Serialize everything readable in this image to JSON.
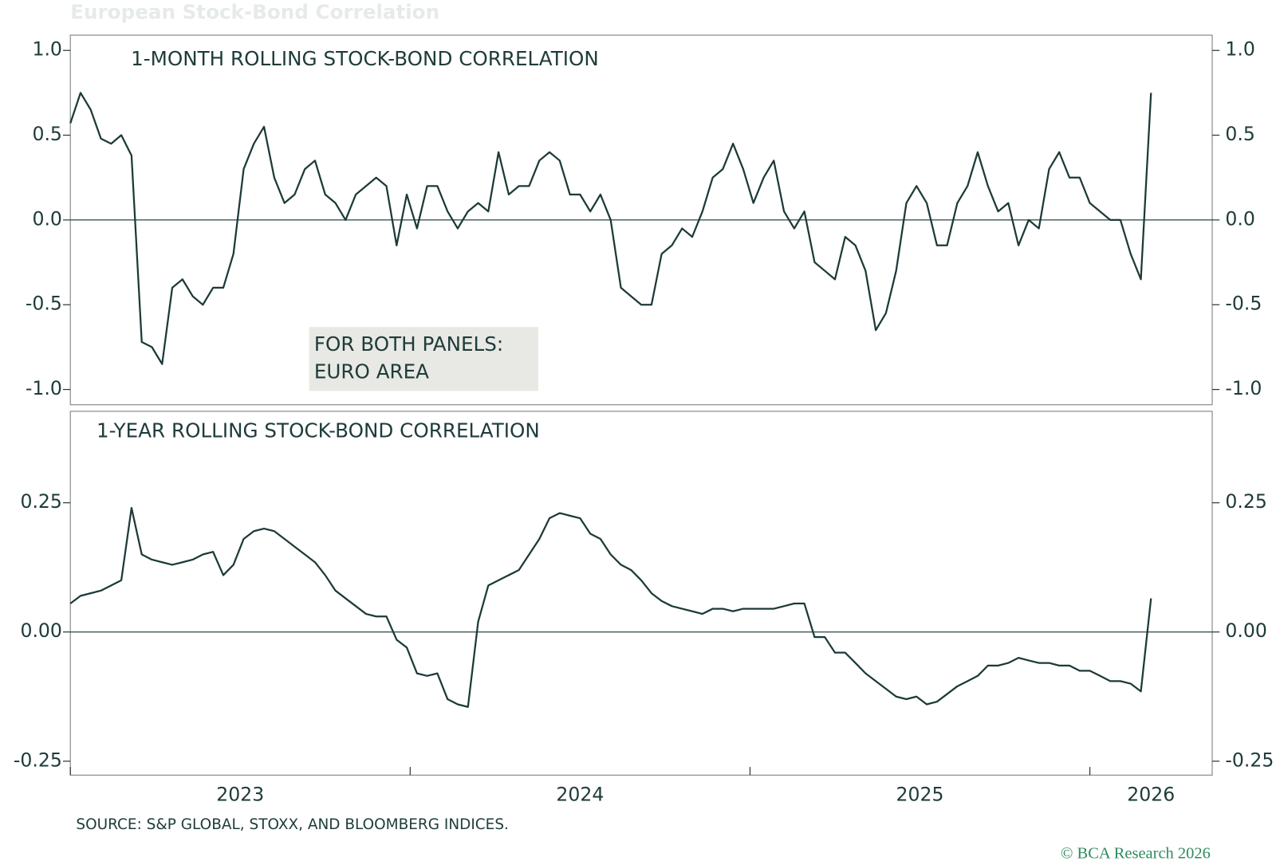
{
  "title": "European Stock-Bond Correlation",
  "source": "SOURCE: S&P GLOBAL, STOXX, AND BLOOMBERG INDICES.",
  "copyright": "© BCA Research 2026",
  "chart_data": [
    {
      "type": "line",
      "title": "1-MONTH ROLLING STOCK-BOND CORRELATION",
      "annotation": [
        "FOR BOTH PANELS:",
        "EURO AREA"
      ],
      "x": [
        2023,
        2023.03,
        2023.06,
        2023.09,
        2023.12,
        2023.15,
        2023.18,
        2023.21,
        2023.24,
        2023.27,
        2023.3,
        2023.33,
        2023.36,
        2023.39,
        2023.42,
        2023.45,
        2023.48,
        2023.51,
        2023.54,
        2023.57,
        2023.6,
        2023.63,
        2023.66,
        2023.69,
        2023.72,
        2023.75,
        2023.78,
        2023.81,
        2023.84,
        2023.87,
        2023.9,
        2023.93,
        2023.96,
        2023.99,
        2024.02,
        2024.05,
        2024.08,
        2024.11,
        2024.14,
        2024.17,
        2024.2,
        2024.23,
        2024.26,
        2024.29,
        2024.32,
        2024.35,
        2024.38,
        2024.41,
        2024.44,
        2024.47,
        2024.5,
        2024.53,
        2024.56,
        2024.59,
        2024.62,
        2024.65,
        2024.68,
        2024.71,
        2024.74,
        2024.77,
        2024.8,
        2024.83,
        2024.86,
        2024.89,
        2024.92,
        2024.95,
        2024.98,
        2025.01,
        2025.04,
        2025.07,
        2025.1,
        2025.13,
        2025.16,
        2025.19,
        2025.22,
        2025.25,
        2025.28,
        2025.31,
        2025.34,
        2025.37,
        2025.4,
        2025.43,
        2025.46,
        2025.49,
        2025.52,
        2025.55,
        2025.58,
        2025.61,
        2025.64,
        2025.67,
        2025.7,
        2025.73,
        2025.76,
        2025.79,
        2025.82,
        2025.85,
        2025.88,
        2025.91,
        2025.94,
        2025.97,
        2026,
        2026.03,
        2026.06,
        2026.09,
        2026.12,
        2026.15,
        2026.18
      ],
      "series": [
        {
          "color": "#1c3a38",
          "values": [
            0.57,
            0.75,
            0.65,
            0.48,
            0.45,
            0.5,
            0.38,
            -0.72,
            -0.75,
            -0.85,
            -0.4,
            -0.35,
            -0.45,
            -0.5,
            -0.4,
            -0.4,
            -0.2,
            0.3,
            0.45,
            0.55,
            0.25,
            0.1,
            0.15,
            0.3,
            0.35,
            0.15,
            0.1,
            0.0,
            0.15,
            0.2,
            0.25,
            0.2,
            -0.15,
            0.15,
            -0.05,
            0.2,
            0.2,
            0.05,
            -0.05,
            0.05,
            0.1,
            0.05,
            0.4,
            0.15,
            0.2,
            0.2,
            0.35,
            0.4,
            0.35,
            0.15,
            0.15,
            0.05,
            0.15,
            0.0,
            -0.4,
            -0.45,
            -0.5,
            -0.5,
            -0.2,
            -0.15,
            -0.05,
            -0.1,
            0.05,
            0.25,
            0.3,
            0.45,
            0.3,
            0.1,
            0.25,
            0.35,
            0.05,
            -0.05,
            0.05,
            -0.25,
            -0.3,
            -0.35,
            -0.1,
            -0.15,
            -0.3,
            -0.65,
            -0.55,
            -0.3,
            0.1,
            0.2,
            0.1,
            -0.15,
            -0.15,
            0.1,
            0.2,
            0.4,
            0.2,
            0.05,
            0.1,
            -0.15,
            0.0,
            -0.05,
            0.3,
            0.4,
            0.25,
            0.25,
            0.1,
            0.05,
            0.0,
            0.0,
            -0.2,
            -0.35,
            0.75
          ]
        }
      ],
      "xlim": [
        2023,
        2026.36
      ],
      "ylim": [
        -1.09,
        1.09
      ],
      "yticks": [
        {
          "value": 1,
          "label": "1.0"
        },
        0.5,
        {
          "value": 0,
          "label": "0.0"
        },
        -0.5,
        {
          "value": -1,
          "label": "-1.0"
        }
      ]
    },
    {
      "type": "line",
      "title": "1-YEAR ROLLING STOCK-BOND CORRELATION",
      "x": [
        2023,
        2023.03,
        2023.06,
        2023.09,
        2023.12,
        2023.15,
        2023.18,
        2023.21,
        2023.24,
        2023.27,
        2023.3,
        2023.33,
        2023.36,
        2023.39,
        2023.42,
        2023.45,
        2023.48,
        2023.51,
        2023.54,
        2023.57,
        2023.6,
        2023.63,
        2023.66,
        2023.69,
        2023.72,
        2023.75,
        2023.78,
        2023.81,
        2023.84,
        2023.87,
        2023.9,
        2023.93,
        2023.96,
        2023.99,
        2024.02,
        2024.05,
        2024.08,
        2024.11,
        2024.14,
        2024.17,
        2024.2,
        2024.23,
        2024.26,
        2024.29,
        2024.32,
        2024.35,
        2024.38,
        2024.41,
        2024.44,
        2024.47,
        2024.5,
        2024.53,
        2024.56,
        2024.59,
        2024.62,
        2024.65,
        2024.68,
        2024.71,
        2024.74,
        2024.77,
        2024.8,
        2024.83,
        2024.86,
        2024.89,
        2024.92,
        2024.95,
        2024.98,
        2025.01,
        2025.04,
        2025.07,
        2025.1,
        2025.13,
        2025.16,
        2025.19,
        2025.22,
        2025.25,
        2025.28,
        2025.31,
        2025.34,
        2025.37,
        2025.4,
        2025.43,
        2025.46,
        2025.49,
        2025.52,
        2025.55,
        2025.58,
        2025.61,
        2025.64,
        2025.67,
        2025.7,
        2025.73,
        2025.76,
        2025.79,
        2025.82,
        2025.85,
        2025.88,
        2025.91,
        2025.94,
        2025.97,
        2026,
        2026.03,
        2026.06,
        2026.09,
        2026.12,
        2026.15,
        2026.18
      ],
      "series": [
        {
          "color": "#1c3a38",
          "values": [
            0.055,
            0.07,
            0.075,
            0.08,
            0.09,
            0.1,
            0.24,
            0.15,
            0.14,
            0.135,
            0.13,
            0.135,
            0.14,
            0.15,
            0.155,
            0.11,
            0.13,
            0.18,
            0.195,
            0.2,
            0.195,
            0.18,
            0.165,
            0.15,
            0.135,
            0.11,
            0.08,
            0.065,
            0.05,
            0.035,
            0.03,
            0.03,
            -0.015,
            -0.03,
            -0.08,
            -0.085,
            -0.08,
            -0.13,
            -0.14,
            -0.145,
            0.02,
            0.09,
            0.1,
            0.11,
            0.12,
            0.15,
            0.18,
            0.22,
            0.23,
            0.225,
            0.22,
            0.19,
            0.18,
            0.15,
            0.13,
            0.12,
            0.1,
            0.075,
            0.06,
            0.05,
            0.045,
            0.04,
            0.035,
            0.045,
            0.045,
            0.04,
            0.045,
            0.045,
            0.045,
            0.045,
            0.05,
            0.055,
            0.055,
            -0.01,
            -0.01,
            -0.04,
            -0.04,
            -0.06,
            -0.08,
            -0.095,
            -0.11,
            -0.125,
            -0.13,
            -0.125,
            -0.14,
            -0.135,
            -0.12,
            -0.105,
            -0.095,
            -0.085,
            -0.065,
            -0.065,
            -0.06,
            -0.05,
            -0.055,
            -0.06,
            -0.06,
            -0.065,
            -0.065,
            -0.075,
            -0.075,
            -0.085,
            -0.095,
            -0.095,
            -0.1,
            -0.115,
            0.065
          ]
        }
      ],
      "xlim": [
        2023,
        2026.36
      ],
      "xticks": [
        2023,
        2024,
        2025,
        2026
      ],
      "ylim": [
        -0.277,
        0.427
      ],
      "yticks": [
        0.25,
        {
          "value": 0,
          "label": "0.00"
        },
        -0.25
      ]
    }
  ]
}
